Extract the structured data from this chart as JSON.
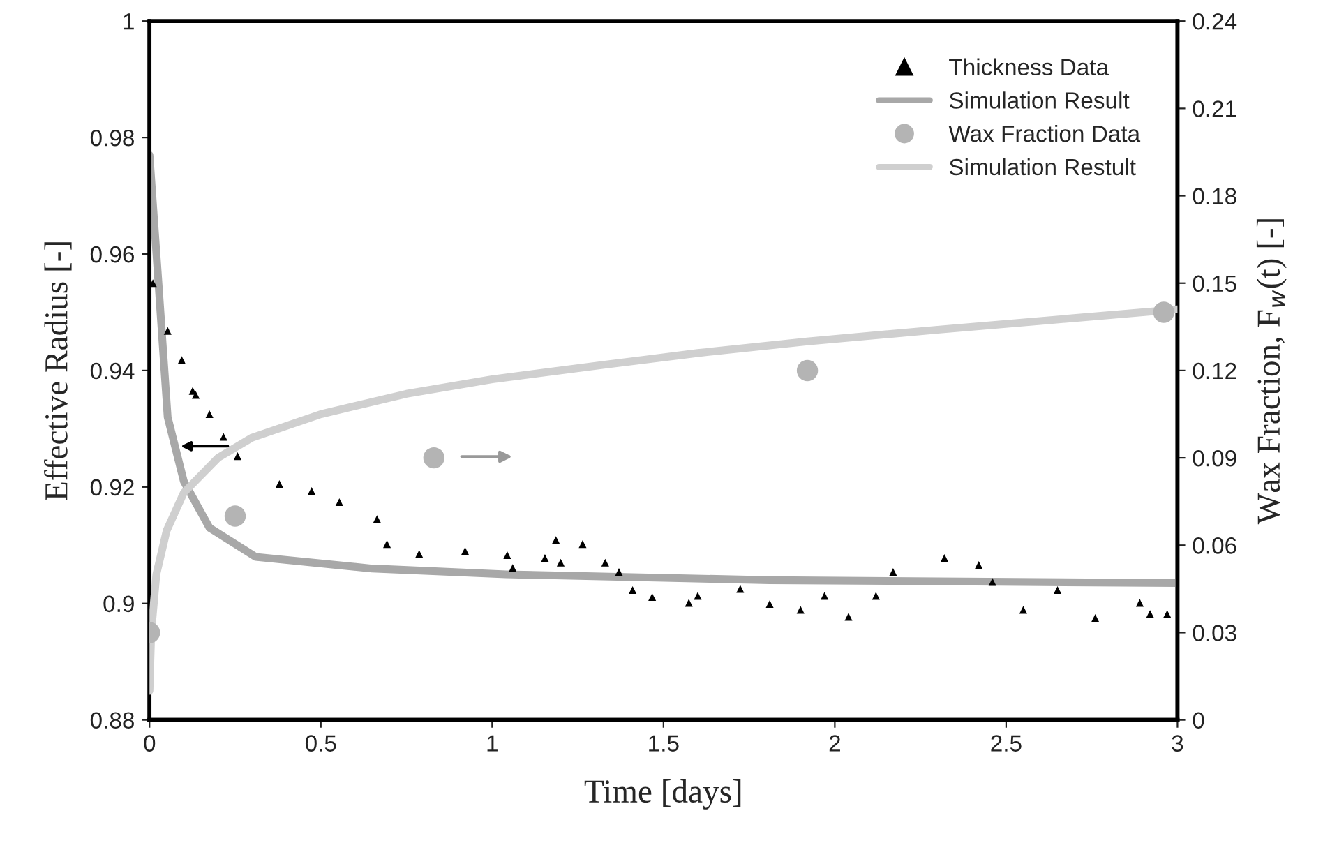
{
  "chart_data": {
    "type": "scatter",
    "xlabel": "Time [days]",
    "ylabel": "Effective Radius [-]",
    "y2label": "Wax Fraction, F$_{w}$(t) [-]",
    "xlim": [
      0,
      3
    ],
    "xticks": [
      0,
      0.5,
      1,
      1.5,
      2,
      2.5,
      3
    ],
    "ylim": [
      0.88,
      1
    ],
    "yticks": [
      0.88,
      0.9,
      0.92,
      0.94,
      0.96,
      0.98,
      1
    ],
    "y2lim": [
      0,
      0.24
    ],
    "y2ticks": [
      0,
      0.03,
      0.06,
      0.09,
      0.12,
      0.15,
      0.18,
      0.21,
      0.24
    ],
    "grid": false,
    "legend": "top right",
    "series": [
      {
        "name": "Thickness Data",
        "marker": "triangle",
        "color": "#000000",
        "x": [
          0.01,
          0.053,
          0.094,
          0.126,
          0.135,
          0.175,
          0.216,
          0.257,
          0.379,
          0.473,
          0.554,
          0.664,
          0.693,
          0.787,
          0.921,
          1.044,
          1.06,
          1.154,
          1.186,
          1.2,
          1.264,
          1.33,
          1.37,
          1.41,
          1.467,
          1.574,
          1.6,
          1.724,
          1.81,
          1.9,
          1.97,
          2.04,
          2.12,
          2.17,
          2.32,
          2.42,
          2.46,
          2.55,
          2.65,
          2.76,
          2.89,
          2.92,
          2.97
        ],
        "values": [
          0.955,
          0.9468,
          0.9418,
          0.9365,
          0.9358,
          0.9325,
          0.9286,
          0.9253,
          0.9205,
          0.9193,
          0.9174,
          0.9145,
          0.9102,
          0.9085,
          0.909,
          0.9083,
          0.9061,
          0.9078,
          0.9109,
          0.907,
          0.9102,
          0.907,
          0.9054,
          0.9023,
          0.9011,
          0.9001,
          0.9013,
          0.9025,
          0.8999,
          0.8989,
          0.9013,
          0.8977,
          0.9013,
          0.9054,
          0.9078,
          0.9066,
          0.9037,
          0.8989,
          0.9023,
          0.8975,
          0.9001,
          0.8982,
          0.8982
        ]
      },
      {
        "name": "Simulation Result",
        "type": "line",
        "color": "#a8a8a8",
        "x": [
          0,
          0.025,
          0.053,
          0.1,
          0.175,
          0.31,
          0.65,
          1.04,
          1.81,
          3.0
        ],
        "values": [
          0.977,
          0.956,
          0.932,
          0.921,
          0.913,
          0.908,
          0.906,
          0.905,
          0.904,
          0.9035
        ]
      },
      {
        "name": "Wax Fraction Data",
        "marker": "circle",
        "axis": "y2",
        "color": "#b4b4b4",
        "x": [
          0,
          0.25,
          0.83,
          1.92,
          2.96
        ],
        "values": [
          0.03,
          0.07,
          0.09,
          0.12,
          0.14
        ]
      },
      {
        "name": "Simulation Restult",
        "type": "line",
        "axis": "y2",
        "color": "#cfcfcf",
        "x": [
          0,
          0.005,
          0.02,
          0.05,
          0.1,
          0.2,
          0.3,
          0.5,
          0.75,
          1.0,
          1.33,
          1.6,
          1.92,
          2.3,
          2.6,
          3.0
        ],
        "values": [
          0.01,
          0.03,
          0.05,
          0.065,
          0.078,
          0.09,
          0.097,
          0.105,
          0.112,
          0.117,
          0.122,
          0.126,
          0.13,
          0.134,
          0.137,
          0.141
        ]
      }
    ]
  }
}
